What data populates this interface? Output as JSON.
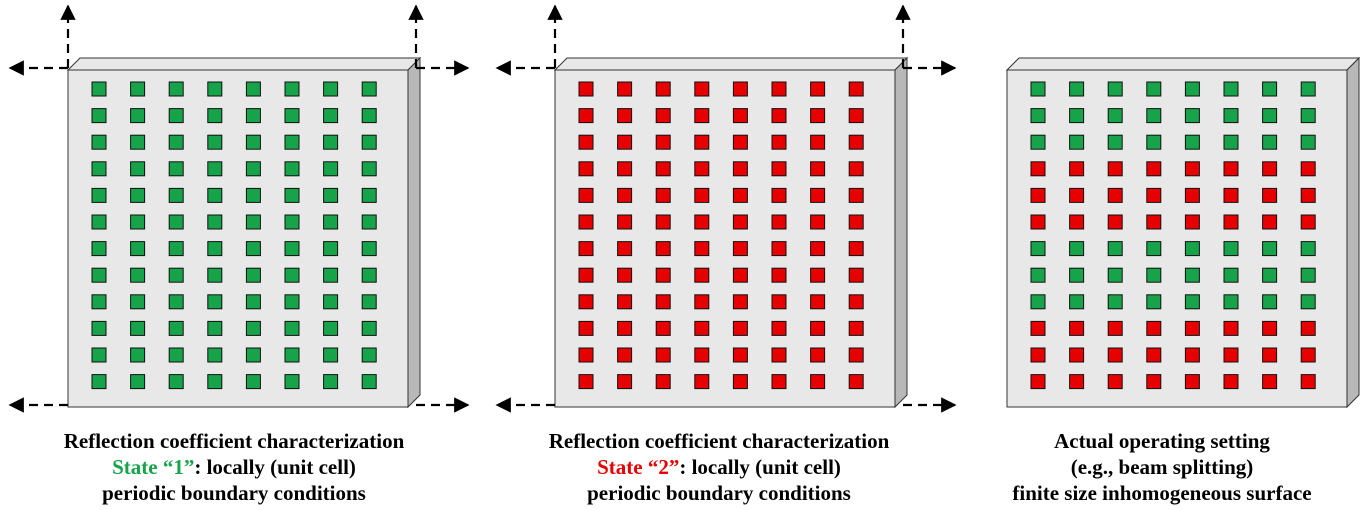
{
  "panels": [
    {
      "grid_rows": [
        "1",
        "1",
        "1",
        "1",
        "1",
        "1",
        "1",
        "1",
        "1",
        "1",
        "1",
        "1"
      ],
      "boundary_arrows": true,
      "caption": {
        "line1": "Reflection coefficient characterization",
        "state_label": "State “1”",
        "line2_rest": ": locally (unit cell)",
        "line3": "periodic boundary conditions"
      }
    },
    {
      "grid_rows": [
        "2",
        "2",
        "2",
        "2",
        "2",
        "2",
        "2",
        "2",
        "2",
        "2",
        "2",
        "2"
      ],
      "boundary_arrows": true,
      "caption": {
        "line1": "Reflection coefficient characterization",
        "state_label": "State “2”",
        "line2_rest": ": locally (unit cell)",
        "line3": "periodic boundary conditions"
      }
    },
    {
      "grid_rows": [
        "1",
        "1",
        "1",
        "2",
        "2",
        "2",
        "1",
        "1",
        "1",
        "2",
        "2",
        "2"
      ],
      "boundary_arrows": false,
      "caption": {
        "line1": "Actual operating setting",
        "line2": "(e.g., beam splitting)",
        "line3": "finite size inhomogeneous surface"
      }
    }
  ],
  "cells_per_row": 8,
  "colors": {
    "state_1": "#16a34a",
    "state_2": "#e60000",
    "plate_face": "#e8e8e8",
    "plate_side": "#b8b8b8"
  }
}
